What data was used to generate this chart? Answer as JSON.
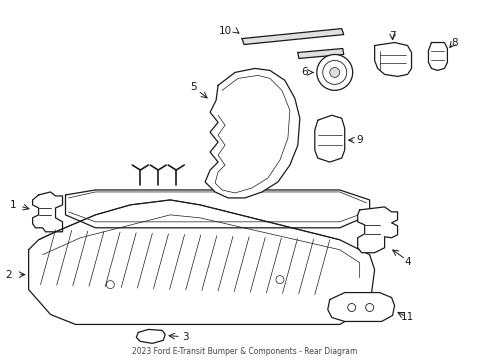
{
  "title": "2023 Ford E-Transit Bumper & Components - Rear Diagram",
  "bg_color": "#ffffff",
  "line_color": "#1a1a1a",
  "label_color": "#000000",
  "figsize": [
    4.9,
    3.6
  ],
  "dpi": 100
}
